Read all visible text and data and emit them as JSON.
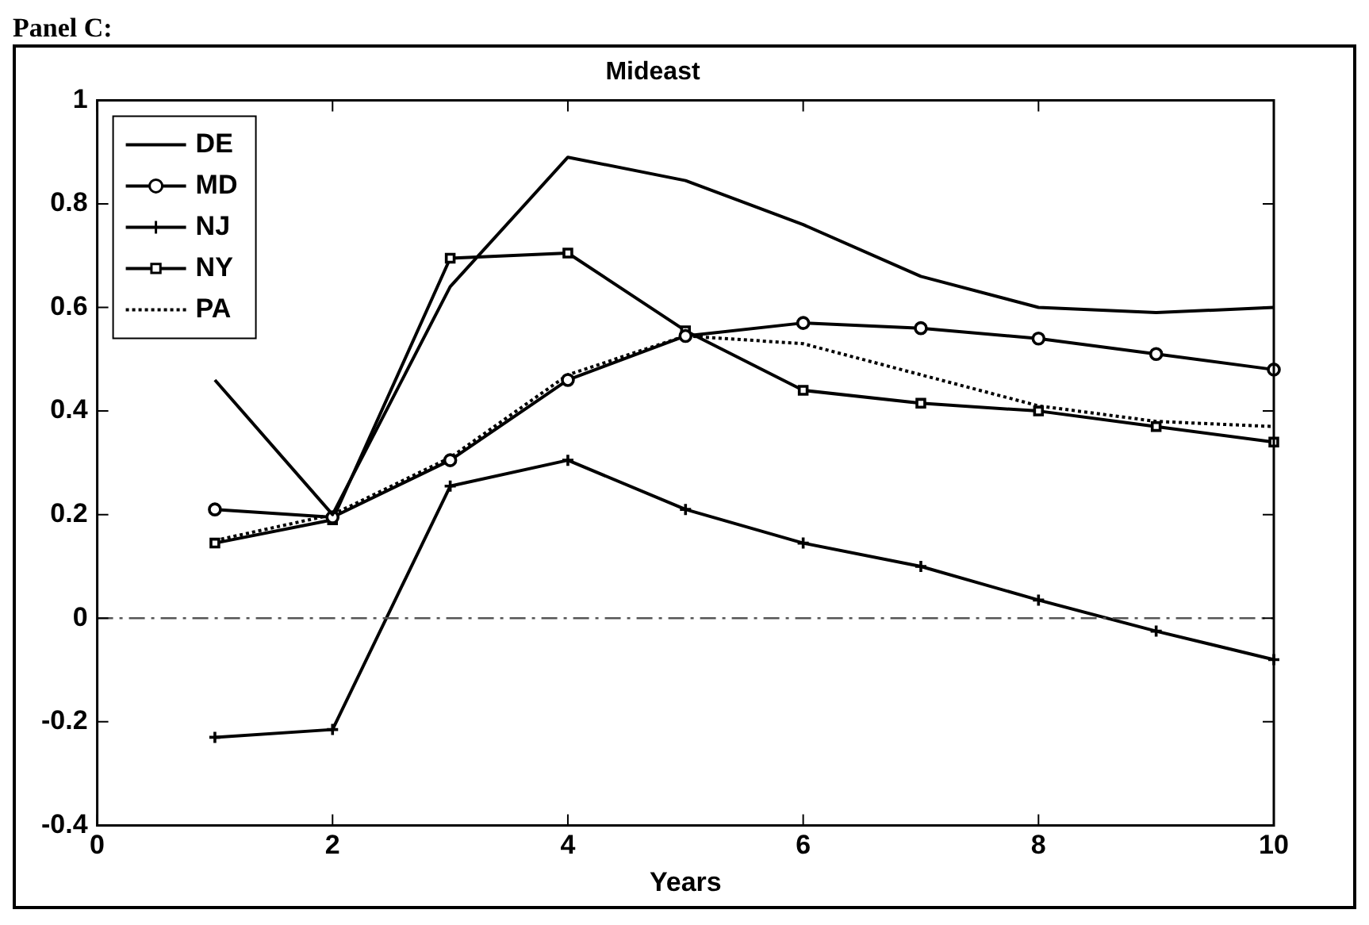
{
  "chart_data": {
    "type": "line",
    "title": "Mideast",
    "xlabel": "Years",
    "annotations": [
      "Panel C:"
    ],
    "x": [
      1,
      2,
      3,
      4,
      5,
      6,
      7,
      8,
      9,
      10
    ],
    "series": [
      {
        "name": "DE",
        "color": "#000000",
        "marker": "none",
        "line_style": "solid",
        "values": [
          0.46,
          0.2,
          0.64,
          0.89,
          0.845,
          0.76,
          0.66,
          0.6,
          0.59,
          0.6
        ]
      },
      {
        "name": "MD",
        "color": "#000000",
        "marker": "circle",
        "line_style": "solid",
        "values": [
          0.21,
          0.195,
          0.305,
          0.46,
          0.545,
          0.57,
          0.56,
          0.54,
          0.51,
          0.48
        ]
      },
      {
        "name": "NJ",
        "color": "#000000",
        "marker": "cross",
        "line_style": "solid",
        "values": [
          -0.23,
          -0.215,
          0.255,
          0.305,
          0.21,
          0.145,
          0.1,
          0.035,
          -0.025,
          -0.08
        ]
      },
      {
        "name": "NY",
        "color": "#000000",
        "marker": "square",
        "line_style": "solid",
        "values": [
          0.145,
          0.19,
          0.695,
          0.705,
          0.555,
          0.44,
          0.415,
          0.4,
          0.37,
          0.34
        ]
      },
      {
        "name": "PA",
        "color": "#000000",
        "marker": "none",
        "line_style": "dotted",
        "values": [
          0.15,
          0.2,
          0.31,
          0.47,
          0.545,
          0.53,
          0.47,
          0.41,
          0.38,
          0.37
        ]
      }
    ],
    "xlim": [
      0,
      10
    ],
    "xticks": [
      0,
      2,
      4,
      6,
      8,
      10
    ],
    "ylim": [
      -0.4,
      1
    ],
    "yticks": [
      -0.4,
      -0.2,
      0,
      0.2,
      0.4,
      0.6,
      0.8,
      1
    ],
    "ref_lines": [
      {
        "axis": "y",
        "value": 0,
        "color": "#555555",
        "line_style": "dashed"
      }
    ],
    "legend": "top left",
    "grid": false
  }
}
